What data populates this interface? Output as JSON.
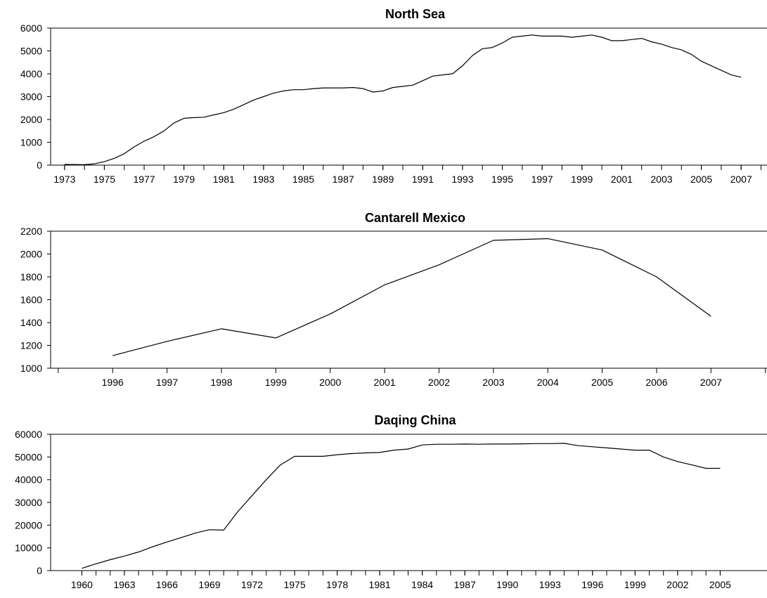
{
  "chart_data": [
    {
      "type": "line",
      "title": "North Sea",
      "xlabel": "",
      "ylabel": "",
      "ylim": [
        0,
        6000
      ],
      "y_ticks": [
        "0",
        "1000",
        "2000",
        "3000",
        "4000",
        "5000",
        "6000"
      ],
      "x_ticks": [
        "1973",
        "1975",
        "1977",
        "1979",
        "1981",
        "1983",
        "1985",
        "1987",
        "1989",
        "1991",
        "1993",
        "1995",
        "1997",
        "1999",
        "2001",
        "2003",
        "2005",
        "2007"
      ],
      "xlim": [
        1972.3,
        2008.3
      ],
      "legend": "none",
      "grid": false,
      "series": [
        {
          "x": [
            1973.0,
            1974.0,
            1974.5,
            1975.0,
            1975.5,
            1976.0,
            1976.5,
            1977.0,
            1977.5,
            1978.0,
            1978.5,
            1979.0,
            1979.5,
            1980.0,
            1980.5,
            1981.0,
            1981.5,
            1982.0,
            1982.5,
            1983.0,
            1983.5,
            1984.0,
            1984.5,
            1985.0,
            1985.5,
            1986.0,
            1986.5,
            1987.0,
            1987.5,
            1988.0,
            1988.5,
            1989.0,
            1989.5,
            1990.0,
            1990.5,
            1991.0,
            1991.5,
            1992.0,
            1992.5,
            1993.0,
            1993.5,
            1994.0,
            1994.5,
            1995.0,
            1995.5,
            1996.0,
            1996.5,
            1997.0,
            1997.5,
            1998.0,
            1998.5,
            1999.0,
            1999.5,
            2000.0,
            2000.5,
            2001.0,
            2001.5,
            2002.0,
            2002.5,
            2003.0,
            2003.5,
            2004.0,
            2004.5,
            2005.0,
            2005.5,
            2006.0,
            2006.5,
            2007.0
          ],
          "values": [
            30,
            20,
            60,
            150,
            300,
            500,
            800,
            1050,
            1250,
            1500,
            1850,
            2050,
            2080,
            2100,
            2200,
            2300,
            2450,
            2650,
            2850,
            3000,
            3150,
            3250,
            3300,
            3300,
            3350,
            3380,
            3380,
            3380,
            3400,
            3350,
            3200,
            3250,
            3400,
            3450,
            3500,
            3700,
            3900,
            3950,
            4000,
            4350,
            4800,
            5100,
            5150,
            5350,
            5600,
            5650,
            5700,
            5650,
            5650,
            5650,
            5600,
            5650,
            5700,
            5600,
            5450,
            5450,
            5500,
            5550,
            5400,
            5300,
            5150,
            5050,
            4850,
            4550,
            4350,
            4150,
            3950,
            3850
          ]
        }
      ]
    },
    {
      "type": "line",
      "title": "Cantarell Mexico",
      "xlabel": "",
      "ylabel": "",
      "ylim": [
        1000,
        2200
      ],
      "y_ticks": [
        "1000",
        "1200",
        "1400",
        "1600",
        "1800",
        "2000",
        "2200"
      ],
      "x_ticks": [
        "1996",
        "1997",
        "1998",
        "1999",
        "2000",
        "2001",
        "2002",
        "2003",
        "2004",
        "2005",
        "2006",
        "2007"
      ],
      "xlim": [
        1994.86,
        2008.03
      ],
      "legend": "none",
      "grid": false,
      "series": [
        {
          "x": [
            1996,
            1997,
            1998,
            1999,
            2000,
            2001,
            2002,
            2003,
            2004,
            2005,
            2006,
            2007
          ],
          "values": [
            1110,
            1235,
            1345,
            1265,
            1475,
            1730,
            1905,
            2120,
            2135,
            2035,
            1800,
            1455
          ]
        }
      ]
    },
    {
      "type": "line",
      "title": "Daqing China",
      "xlabel": "",
      "ylabel": "",
      "ylim": [
        0,
        60000
      ],
      "y_ticks": [
        "0",
        "10000",
        "20000",
        "30000",
        "40000",
        "50000",
        "60000"
      ],
      "x_ticks": [
        "1960",
        "1963",
        "1966",
        "1969",
        "1972",
        "1975",
        "1978",
        "1981",
        "1984",
        "1987",
        "1990",
        "1993",
        "1996",
        "1999",
        "2002",
        "2005"
      ],
      "xlim": [
        1957.8,
        2008.3
      ],
      "legend": "none",
      "grid": false,
      "series": [
        {
          "x": [
            1960,
            1961,
            1962,
            1963,
            1964,
            1965,
            1966,
            1967,
            1968,
            1969,
            1970,
            1971,
            1972,
            1973,
            1974,
            1975,
            1976,
            1977,
            1978,
            1979,
            1980,
            1981,
            1982,
            1983,
            1984,
            1985,
            1986,
            1987,
            1988,
            1989,
            1990,
            1991,
            1992,
            1993,
            1994,
            1995,
            1996,
            1997,
            1998,
            1999,
            2000,
            2001,
            2002,
            2003,
            2004,
            2005
          ],
          "values": [
            1000,
            3000,
            4800,
            6400,
            8200,
            10500,
            12600,
            14500,
            16500,
            18000,
            17800,
            26000,
            33000,
            40000,
            46500,
            50300,
            50300,
            50300,
            51000,
            51500,
            51800,
            52000,
            53000,
            53500,
            55300,
            55600,
            55600,
            55700,
            55600,
            55700,
            55700,
            55800,
            55900,
            55900,
            56000,
            55000,
            54500,
            54000,
            53500,
            53000,
            53000,
            50000,
            48000,
            46500,
            45000,
            45000
          ]
        }
      ]
    }
  ]
}
